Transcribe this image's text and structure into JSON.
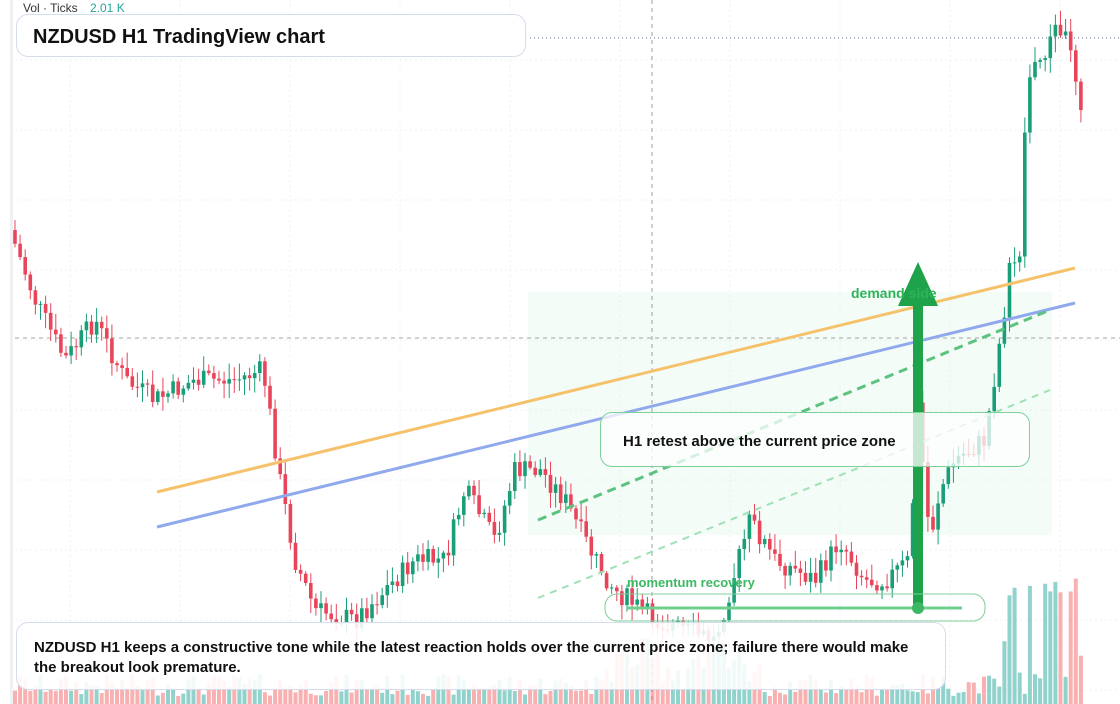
{
  "header": {
    "volume_label": "Vol · Ticks",
    "volume_value": "2.01 K",
    "title": "NZDUSD H1 TradingView chart"
  },
  "annotations": {
    "demand": "demand side",
    "retest": "H1 retest above the current price zone",
    "momentum": "momentum recovery"
  },
  "summary": "NZDUSD H1 keeps a constructive tone while the latest reaction holds over the current price zone; failure there would make the breakout look premature."
}
